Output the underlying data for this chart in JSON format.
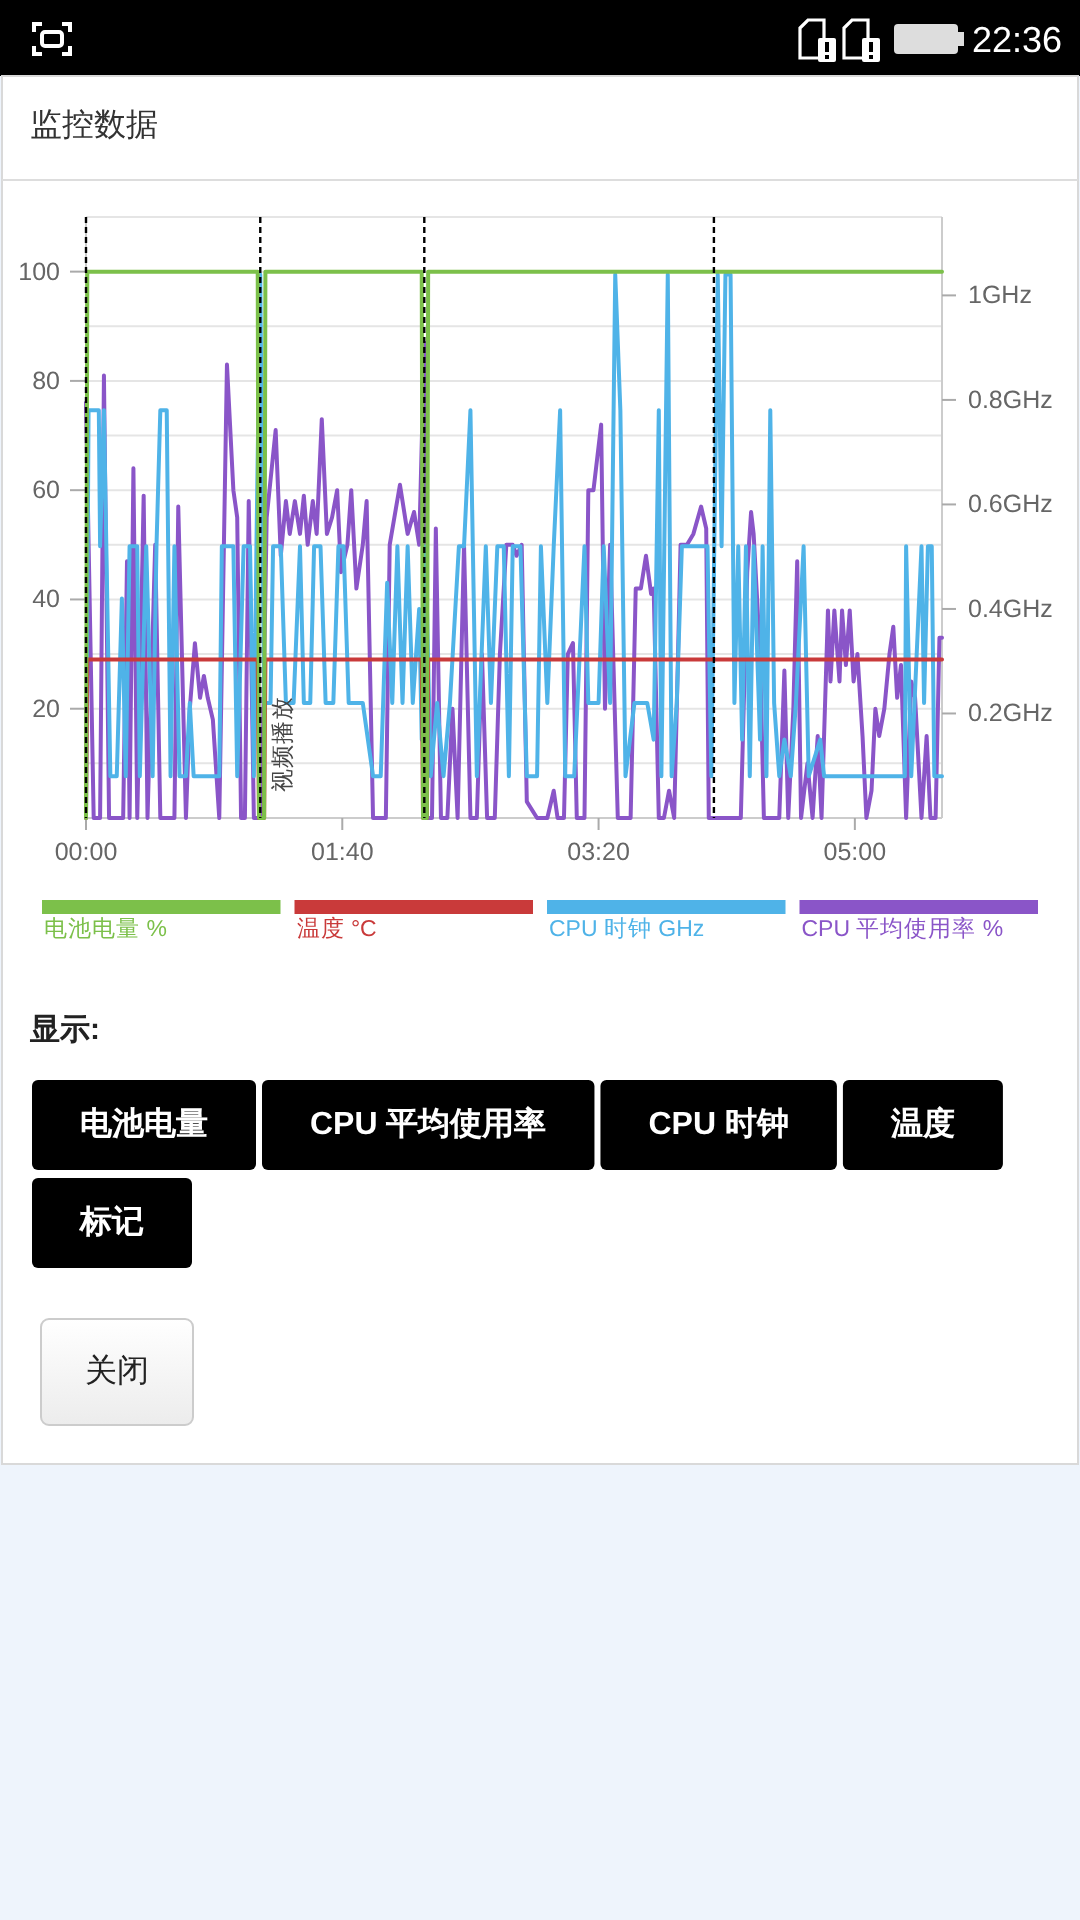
{
  "chart_data": {
    "type": "line",
    "title": "监控数据",
    "xlim": [
      0,
      334
    ],
    "xticks": [
      {
        "value": 0,
        "label": "00:00"
      },
      {
        "value": 100,
        "label": "01:40"
      },
      {
        "value": 200,
        "label": "03:20"
      },
      {
        "value": 300,
        "label": "05:00"
      }
    ],
    "ylim": [
      0,
      110
    ],
    "yticks": [
      {
        "value": 0,
        "label": null
      },
      {
        "value": 10,
        "label": null
      },
      20,
      {
        "value": 30,
        "label": null
      },
      40,
      {
        "value": 50,
        "label": null
      },
      60,
      {
        "value": 70,
        "label": null
      },
      80,
      {
        "value": 90,
        "label": null
      },
      100,
      {
        "value": 110,
        "label": null
      }
    ],
    "y2lim": [
      0,
      1.15
    ],
    "y2ticks": [
      {
        "value": 0.2,
        "label": "0.2GHz"
      },
      {
        "value": 0.4,
        "label": "0.4GHz"
      },
      {
        "value": 0.6,
        "label": "0.6GHz"
      },
      {
        "value": 0.8,
        "label": "0.8GHz"
      },
      {
        "value": 1,
        "label": "1GHz"
      }
    ],
    "grid": "y",
    "legend": "bottom",
    "line_style": "solid",
    "series": [
      {
        "name": "电池电量 %",
        "color": "#7cc04a",
        "x": [
          0,
          0.5,
          67,
          67.5,
          69.5,
          70,
          131,
          131.5,
          133,
          133.5,
          334
        ],
        "values": [
          0,
          100,
          100,
          0,
          0,
          100,
          100,
          0,
          0,
          100,
          100
        ]
      },
      {
        "name": "温度 °C",
        "color": "#c93a3a",
        "x": [
          0,
          0.5,
          67,
          67.5,
          69.5,
          70,
          131,
          131.5,
          133,
          133.5,
          334
        ],
        "values": [
          0,
          29,
          29,
          0,
          0,
          29,
          29,
          0,
          0,
          29,
          29
        ]
      },
      {
        "name": "CPU 时钟 GHz",
        "color": "#4fb3e8",
        "axis": "y2",
        "x": [
          0,
          1,
          5,
          5.5,
          7,
          9.5,
          12,
          14,
          15.5,
          17,
          20,
          21,
          23.5,
          26,
          27.5,
          29,
          31.5,
          33,
          34.5,
          36.5,
          39,
          40.5,
          42,
          52,
          53,
          57.5,
          59,
          61.5,
          64,
          65.5,
          66.5,
          68,
          69.5,
          72,
          73,
          76,
          78,
          81,
          83.5,
          85,
          87.5,
          89,
          91.5,
          93.5,
          96.5,
          98.5,
          100.5,
          102.5,
          108,
          110,
          112,
          115,
          117.5,
          119.5,
          121.5,
          123.5,
          125.5,
          127.5,
          130,
          131,
          132.5,
          134.5,
          137,
          139.5,
          142,
          145.5,
          147.5,
          150,
          152.5,
          156,
          158,
          160.5,
          163,
          165,
          166.5,
          169.5,
          172,
          176,
          177.5,
          180,
          182.5,
          185,
          187,
          190.5,
          194.5,
          196,
          200,
          202,
          204.5,
          206.5,
          208.5,
          210.5,
          214,
          219,
          221.5,
          223.5,
          224.5,
          227,
          228.5,
          230.5,
          232.5,
          242.5,
          244,
          246.5,
          248,
          249.5,
          251.5,
          253,
          254.5,
          256,
          257.5,
          259,
          260.5,
          263,
          264,
          265.5,
          267,
          268.5,
          270.5,
          272.5,
          275,
          277,
          280,
          282,
          286.5,
          288,
          319.5,
          320,
          322,
          326,
          327,
          328.5,
          330,
          331,
          334
        ],
        "values": [
          0,
          0.78,
          0.78,
          0.52,
          0.78,
          0.08,
          0.08,
          0.42,
          0.08,
          0.52,
          0.52,
          0.08,
          0.52,
          0.08,
          0.52,
          0.78,
          0.78,
          0.08,
          0.52,
          0.08,
          0.08,
          0.22,
          0.08,
          0.08,
          0.52,
          0.52,
          0.08,
          0.52,
          0.52,
          0.08,
          0.52,
          1.04,
          0.22,
          0.22,
          0.52,
          0.52,
          0.22,
          0.22,
          0.52,
          0.22,
          0.22,
          0.52,
          0.52,
          0.22,
          0.22,
          0.52,
          0.52,
          0.22,
          0.22,
          0.15,
          0.08,
          0.08,
          0.45,
          0.22,
          0.52,
          0.22,
          0.52,
          0.22,
          0.4,
          0.15,
          0.52,
          0.08,
          0.22,
          0.08,
          0.22,
          0.52,
          0.52,
          0.78,
          0.08,
          0.52,
          0.22,
          0.52,
          0.52,
          0.08,
          0.52,
          0.52,
          0.08,
          0.08,
          0.52,
          0.22,
          0.52,
          0.78,
          0.08,
          0.08,
          0.52,
          0.22,
          0.22,
          0.52,
          0.22,
          1.04,
          0.78,
          0.08,
          0.22,
          0.22,
          0.15,
          0.78,
          0.08,
          1.04,
          0.08,
          0.22,
          0.52,
          0.52,
          0.08,
          1.04,
          0.52,
          1.04,
          1.04,
          0.22,
          0.52,
          0.15,
          0.52,
          0.08,
          0.52,
          0.15,
          0.52,
          0.08,
          0.78,
          0.22,
          0.08,
          0.15,
          0.08,
          0.22,
          0.52,
          0.08,
          0.15,
          0.08,
          0.08,
          0.52,
          0.08,
          0.52,
          0.22,
          0.52,
          0.52,
          0.08,
          0.08
        ]
      },
      {
        "name": "CPU 平均使用率 %",
        "color": "#8a55c8",
        "x": [
          0,
          3,
          5.5,
          7,
          9,
          14.5,
          16,
          17,
          18.5,
          20,
          22.5,
          24,
          27,
          29,
          34.5,
          36,
          39,
          40.5,
          42.5,
          44.5,
          46,
          47.5,
          49.5,
          52,
          55,
          57.5,
          59,
          60.5,
          62,
          63.5,
          65.5,
          68.5,
          70.5,
          74,
          76,
          78,
          79.5,
          81.5,
          83.5,
          85,
          86.5,
          88.5,
          90,
          92,
          94,
          96,
          98,
          99.5,
          102,
          103.5,
          105.5,
          108,
          109.5,
          112,
          117,
          118.5,
          122.5,
          125.5,
          128,
          130,
          132,
          133,
          135,
          136.5,
          138.5,
          141,
          143,
          145,
          147.5,
          150,
          152.5,
          154.5,
          156.5,
          159.5,
          161.5,
          164,
          166.5,
          168,
          170,
          172,
          176,
          180,
          182.5,
          184,
          186.5,
          188,
          190,
          191.5,
          194.5,
          196,
          198,
          201,
          202.5,
          204.5,
          207.5,
          212.5,
          214.5,
          216.5,
          218.5,
          220.5,
          221.5,
          223.5,
          225.5,
          227.5,
          229.5,
          232,
          234.5,
          237,
          240,
          242,
          243,
          255.5,
          258,
          259.5,
          260.5,
          263,
          264.5,
          270.5,
          272.5,
          274,
          276,
          277.5,
          279,
          281.5,
          283.5,
          285.5,
          287,
          289.5,
          290.5,
          292,
          294,
          295,
          296.5,
          298,
          299.5,
          301,
          303,
          304.5,
          306.5,
          308,
          309.5,
          311.5,
          313.5,
          315,
          316.5,
          318,
          320,
          322,
          323.5,
          326,
          328,
          329.5,
          331.5,
          333,
          334
        ],
        "values": [
          76,
          0,
          0,
          81,
          0,
          0,
          47,
          0,
          64,
          0,
          59,
          0,
          50,
          0,
          0,
          57,
          0,
          20,
          32,
          22,
          26,
          22,
          18,
          0,
          83,
          60,
          55,
          0,
          0,
          58,
          0,
          0,
          55,
          71,
          48,
          58,
          52,
          58,
          52,
          59,
          50,
          58,
          52,
          73,
          52,
          55,
          60,
          45,
          50,
          60,
          42,
          50,
          58,
          0,
          0,
          50,
          61,
          52,
          56,
          50,
          87,
          0,
          0,
          53,
          0,
          0,
          20,
          0,
          50,
          0,
          0,
          30,
          0,
          0,
          30,
          50,
          50,
          48,
          50,
          3,
          0,
          0,
          5,
          0,
          0,
          30,
          32,
          0,
          0,
          60,
          60,
          72,
          20,
          50,
          0,
          0,
          42,
          42,
          48,
          41,
          42,
          0,
          0,
          5,
          0,
          50,
          50,
          52,
          57,
          53,
          0,
          0,
          45,
          56,
          52,
          30,
          0,
          0,
          27,
          0,
          20,
          47,
          0,
          10,
          0,
          15,
          0,
          38,
          25,
          38,
          25,
          38,
          28,
          38,
          25,
          30,
          15,
          0,
          5,
          20,
          15,
          20,
          30,
          35,
          22,
          28,
          0,
          25,
          22,
          0,
          15,
          0,
          0,
          33,
          33
        ]
      }
    ],
    "ref_lines": [
      {
        "axis": "x",
        "value": 0,
        "label": null,
        "color": "#000000",
        "line_style": "dashed"
      },
      {
        "axis": "x",
        "value": 68,
        "label": "视频播放",
        "color": "#000000",
        "line_style": "dashed"
      },
      {
        "axis": "x",
        "value": 132,
        "label": null,
        "color": "#000000",
        "line_style": "dashed"
      },
      {
        "axis": "x",
        "value": 245,
        "label": null,
        "color": "#000000",
        "line_style": "dashed"
      }
    ],
    "annotations": [
      "显示:",
      "电池电量",
      "CPU 平均使用率",
      "CPU 时钟",
      "温度",
      "标记",
      "关闭",
      "22:36"
    ]
  }
}
